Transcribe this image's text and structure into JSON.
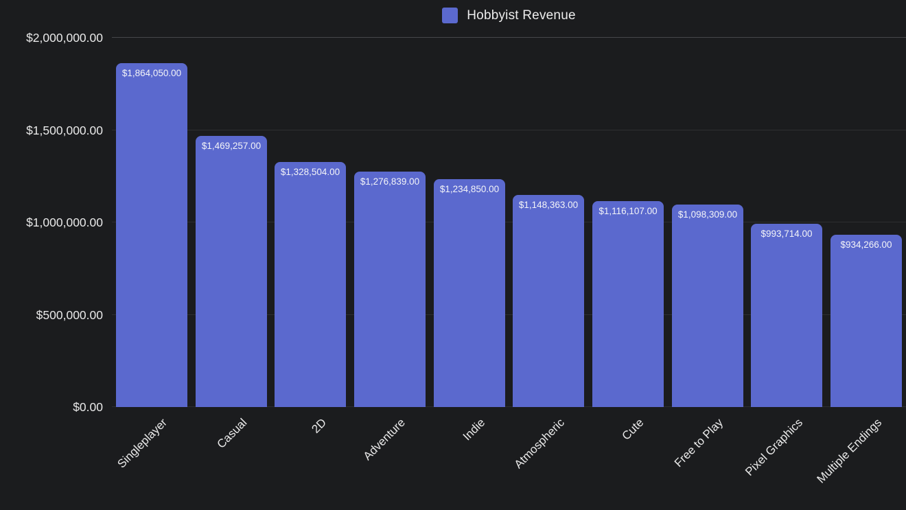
{
  "chart_data": {
    "type": "bar",
    "title": "",
    "series_name": "Hobbyist Revenue",
    "legend_position": "top",
    "grid": true,
    "categories": [
      "Singleplayer",
      "Casual",
      "2D",
      "Adventure",
      "Indie",
      "Atmospheric",
      "Cute",
      "Free to Play",
      "Pixel Graphics",
      "Multiple Endings"
    ],
    "values": [
      1864050,
      1469257,
      1328504,
      1276839,
      1234850,
      1148363,
      1116107,
      1098309,
      993714,
      934266
    ],
    "value_labels": [
      "$1,864,050.00",
      "$1,469,257.00",
      "$1,328,504.00",
      "$1,276,839.00",
      "$1,234,850.00",
      "$1,148,363.00",
      "$1,116,107.00",
      "$1,098,309.00",
      "$993,714.00",
      "$934,266.00"
    ],
    "y_axis": {
      "min": 0,
      "max": 2000000,
      "ticks": [
        {
          "value": 2000000,
          "label": "$2,000,000.00"
        },
        {
          "value": 1500000,
          "label": "$1,500,000.00"
        },
        {
          "value": 1000000,
          "label": "$1,000,000.00"
        },
        {
          "value": 500000,
          "label": "$500,000.00"
        },
        {
          "value": 0,
          "label": "$0.00"
        }
      ]
    },
    "colors": {
      "background": "#1b1c1e",
      "bar": "#5b69ce",
      "grid": "#2e2f31",
      "grid_top": "#47484b",
      "axis_text": "#e9e9e9",
      "value_text": "#f3f4f8",
      "legend_text": "#ededed"
    }
  }
}
